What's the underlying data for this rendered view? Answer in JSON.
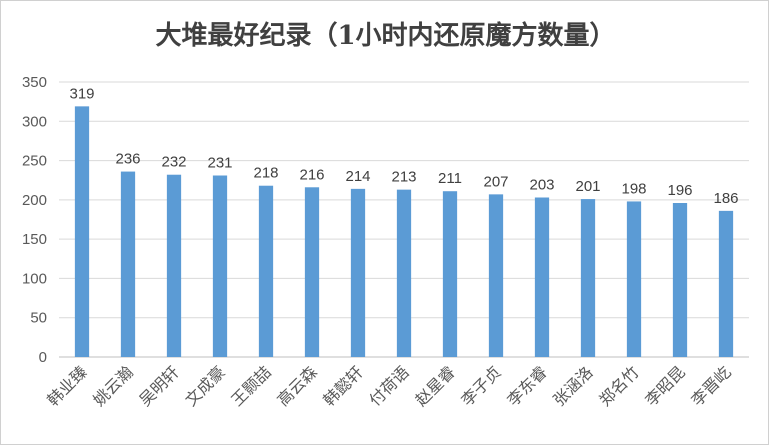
{
  "chart_data": {
    "type": "bar",
    "title": "大堆最好纪录（1小时内还原魔方数量）",
    "categories": [
      "韩业臻",
      "姚云瀚",
      "吴明轩",
      "文成豪",
      "王颢喆",
      "高云森",
      "韩懿轩",
      "付荷语",
      "赵星睿",
      "李子贞",
      "李东睿",
      "张涵洛",
      "郑名竹",
      "李昭昆",
      "李晋屹"
    ],
    "values": [
      319,
      236,
      232,
      231,
      218,
      216,
      214,
      213,
      211,
      207,
      203,
      201,
      198,
      196,
      186
    ],
    "ylim": [
      0,
      350
    ],
    "yticks": [
      0,
      50,
      100,
      150,
      200,
      250,
      300,
      350
    ],
    "grid": true,
    "legend": "none",
    "colors": {
      "bar": "#5B9BD5",
      "grid": "#d9d9d9",
      "axis": "#bfbfbf"
    }
  }
}
